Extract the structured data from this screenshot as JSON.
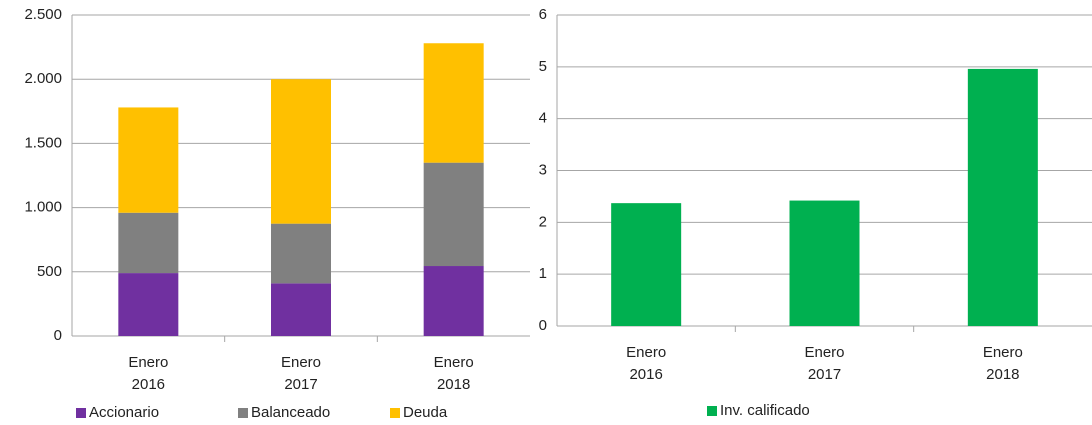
{
  "chart_data": [
    {
      "type": "bar",
      "stacked": true,
      "categories": [
        "Enero 2016",
        "Enero 2017",
        "Enero 2018"
      ],
      "series": [
        {
          "name": "Accionario",
          "color": "#7030a0",
          "values": [
            490,
            410,
            545
          ]
        },
        {
          "name": "Balanceado",
          "color": "#808080",
          "values": [
            470,
            465,
            805
          ]
        },
        {
          "name": "Deuda",
          "color": "#ffc000",
          "values": [
            820,
            1125,
            930
          ]
        }
      ],
      "ylim": [
        0,
        2500
      ],
      "yticks": [
        0,
        500,
        {
          "value": 1000,
          "label": "1.000"
        },
        {
          "value": 1500,
          "label": "1.500"
        },
        {
          "value": 2000,
          "label": "2.000"
        },
        {
          "value": 2500,
          "label": "2.500"
        }
      ],
      "grid": true,
      "legend": "bottom"
    },
    {
      "type": "bar",
      "categories": [
        "Enero 2016",
        "Enero 2017",
        "Enero 2018"
      ],
      "series": [
        {
          "name": "Inv. calificado",
          "color": "#00b050",
          "values": [
            2.37,
            2.42,
            4.96
          ]
        }
      ],
      "ylim": [
        0,
        6
      ],
      "yticks": [
        0,
        1,
        2,
        3,
        4,
        5,
        6
      ],
      "grid": true,
      "legend": "bottom"
    }
  ]
}
